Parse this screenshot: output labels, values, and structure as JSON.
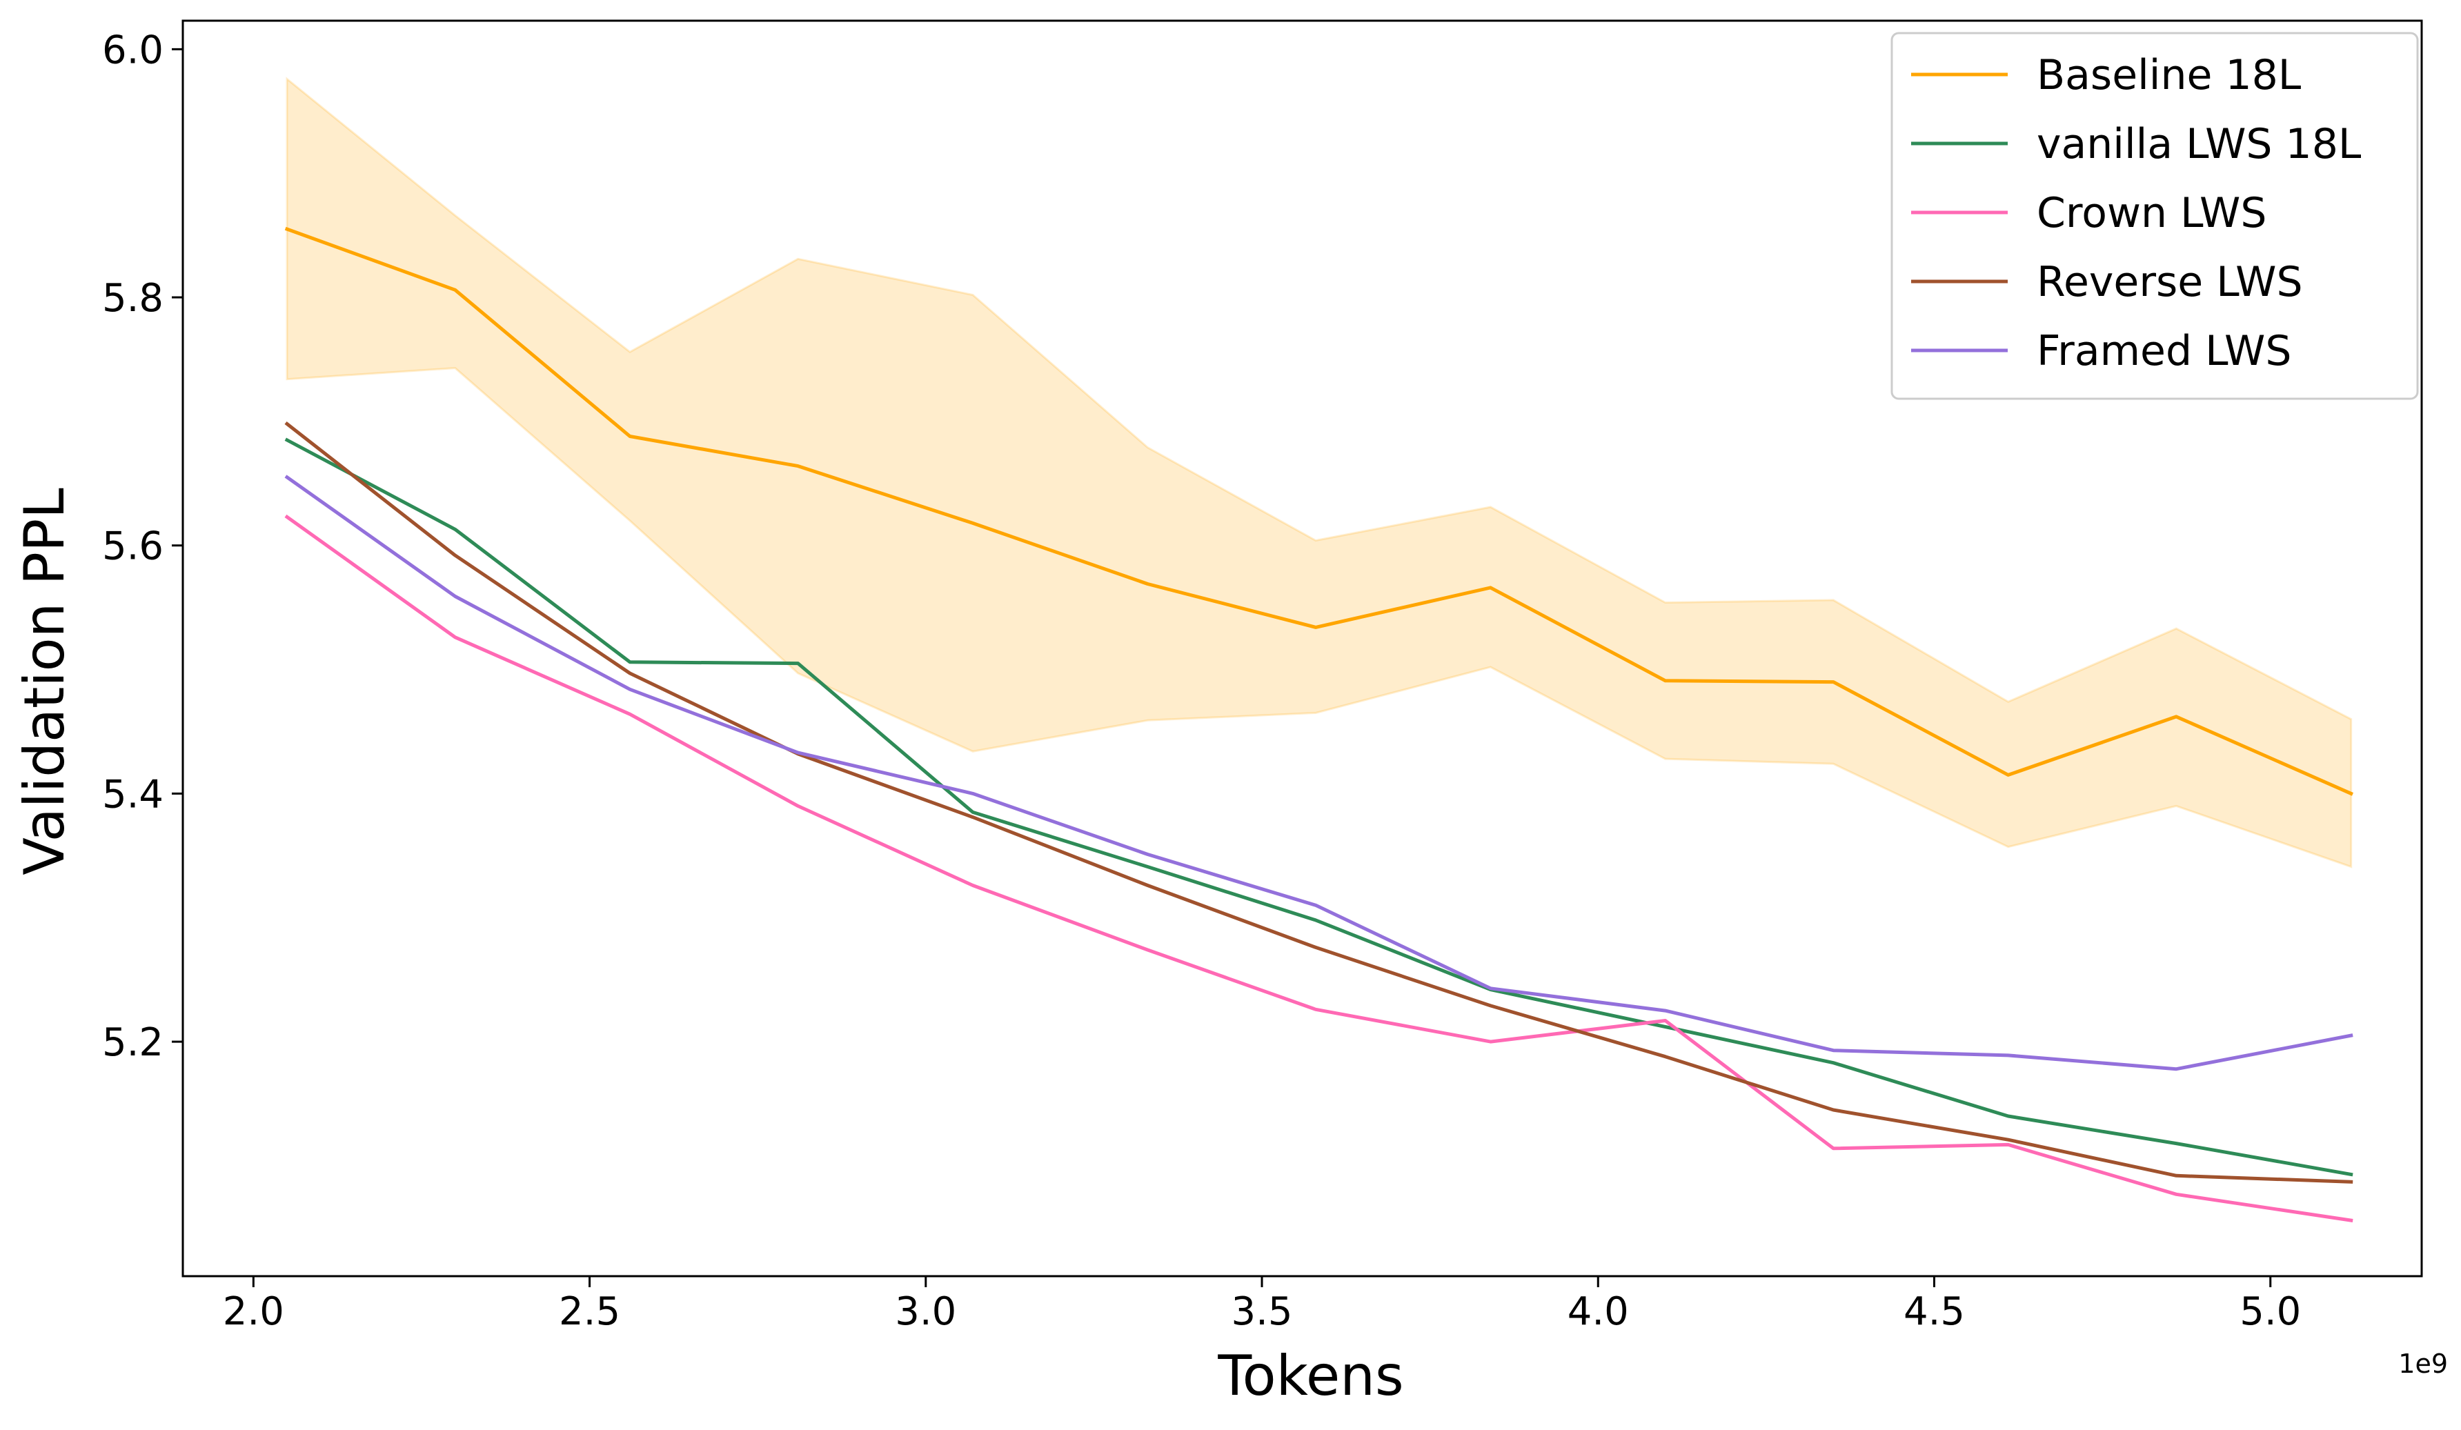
{
  "chart_data": {
    "type": "line",
    "title": "",
    "xlabel": "Tokens",
    "ylabel": "Validation PPL",
    "x_offset_label": "1e9",
    "x_scale": 1000000000,
    "xlim": [
      1.895,
      5.225
    ],
    "ylim": [
      5.011,
      6.023
    ],
    "x_ticks": [
      2.0,
      2.5,
      3.0,
      3.5,
      4.0,
      4.5,
      5.0
    ],
    "x_tick_labels": [
      "2.0",
      "2.5",
      "3.0",
      "3.5",
      "4.0",
      "4.5",
      "5.0"
    ],
    "y_ticks": [
      5.2,
      5.4,
      5.6,
      5.8,
      6.0
    ],
    "y_tick_labels": [
      "5.2",
      "5.4",
      "5.6",
      "5.8",
      "6.0"
    ],
    "legend_position": "top-right",
    "x": [
      2.05,
      2.3,
      2.56,
      2.81,
      3.07,
      3.33,
      3.58,
      3.84,
      4.1,
      4.35,
      4.61,
      4.86,
      5.12
    ],
    "series": [
      {
        "name": "Baseline 18L",
        "color": "#ffa500",
        "values": [
          5.855,
          5.806,
          5.688,
          5.664,
          5.618,
          5.569,
          5.534,
          5.566,
          5.491,
          5.49,
          5.415,
          5.462,
          5.4
        ],
        "band": {
          "color": "#ffa500",
          "opacity": 0.2,
          "upper": [
            5.976,
            5.866,
            5.756,
            5.831,
            5.802,
            5.679,
            5.604,
            5.631,
            5.554,
            5.556,
            5.474,
            5.533,
            5.46
          ],
          "lower": [
            5.734,
            5.743,
            5.62,
            5.497,
            5.434,
            5.459,
            5.465,
            5.502,
            5.428,
            5.424,
            5.357,
            5.39,
            5.341
          ]
        }
      },
      {
        "name": "vanilla LWS 18L",
        "color": "#2e8b57",
        "values": [
          5.685,
          5.613,
          5.506,
          5.505,
          5.385,
          5.341,
          5.298,
          5.242,
          5.212,
          5.183,
          5.14,
          5.118,
          5.093
        ]
      },
      {
        "name": "Crown LWS",
        "color": "#ff69b4",
        "values": [
          5.623,
          5.526,
          5.464,
          5.39,
          5.326,
          5.274,
          5.226,
          5.2,
          5.217,
          5.114,
          5.117,
          5.077,
          5.056
        ]
      },
      {
        "name": "Reverse LWS",
        "color": "#a0522d",
        "values": [
          5.698,
          5.592,
          5.497,
          5.432,
          5.381,
          5.326,
          5.276,
          5.229,
          5.188,
          5.145,
          5.121,
          5.092,
          5.087
        ]
      },
      {
        "name": "Framed LWS",
        "color": "#9370db",
        "values": [
          5.655,
          5.559,
          5.484,
          5.433,
          5.4,
          5.351,
          5.31,
          5.243,
          5.225,
          5.193,
          5.189,
          5.178,
          5.205
        ]
      }
    ]
  }
}
